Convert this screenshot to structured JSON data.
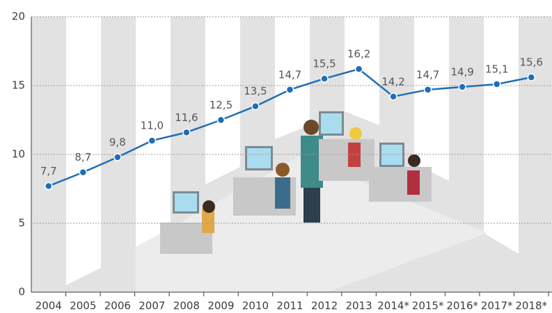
{
  "chart_data": {
    "type": "line",
    "categories": [
      "2004",
      "2005",
      "2006",
      "2007",
      "2008",
      "2009",
      "2010",
      "2011",
      "2012",
      "2013",
      "2014*",
      "2015*",
      "2016*",
      "2017*",
      "2018*"
    ],
    "series": [
      {
        "name": null,
        "color": "#1f6eb5",
        "values": [
          7.7,
          8.7,
          9.8,
          11.0,
          11.6,
          12.5,
          13.5,
          14.7,
          15.5,
          16.2,
          14.2,
          14.7,
          14.9,
          15.1,
          15.6
        ],
        "value_labels": [
          "7,7",
          "8,7",
          "9,8",
          "11,0",
          "11,6",
          "12,5",
          "13,5",
          "14,7",
          "15,5",
          "16,2",
          "14,2",
          "14,7",
          "14,9",
          "15,1",
          "15,6"
        ]
      }
    ],
    "ylim": [
      0,
      20
    ],
    "yticks": [
      0,
      5,
      10,
      15,
      20
    ],
    "grid": true
  }
}
